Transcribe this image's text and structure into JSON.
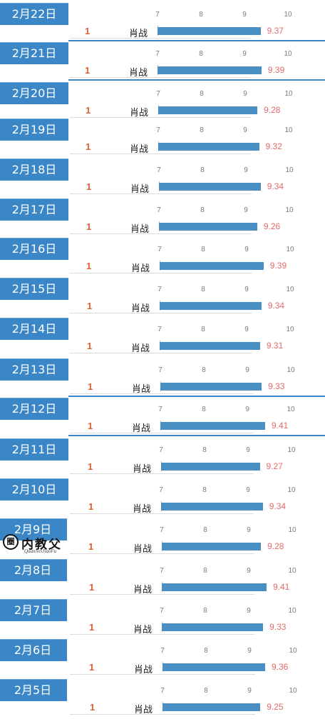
{
  "chart_data": {
    "type": "bar",
    "orientation": "horizontal",
    "tick_labels": [
      "7",
      "8",
      "9",
      "10"
    ],
    "xlim": [
      7,
      10
    ],
    "rows": [
      {
        "date": "2月22日",
        "rank": "1",
        "name": "肖战",
        "value": 9.37,
        "value_label": "9.37"
      },
      {
        "date": "2月21日",
        "rank": "1",
        "name": "肖战",
        "value": 9.39,
        "value_label": "9.39"
      },
      {
        "date": "2月20日",
        "rank": "1",
        "name": "肖战",
        "value": 9.28,
        "value_label": "9.28"
      },
      {
        "date": "2月19日",
        "rank": "1",
        "name": "肖战",
        "value": 9.32,
        "value_label": "9.32"
      },
      {
        "date": "2月18日",
        "rank": "1",
        "name": "肖战",
        "value": 9.34,
        "value_label": "9.34"
      },
      {
        "date": "2月17日",
        "rank": "1",
        "name": "肖战",
        "value": 9.26,
        "value_label": "9.26"
      },
      {
        "date": "2月16日",
        "rank": "1",
        "name": "肖战",
        "value": 9.39,
        "value_label": "9.39"
      },
      {
        "date": "2月15日",
        "rank": "1",
        "name": "肖战",
        "value": 9.34,
        "value_label": "9.34"
      },
      {
        "date": "2月14日",
        "rank": "1",
        "name": "肖战",
        "value": 9.31,
        "value_label": "9.31"
      },
      {
        "date": "2月13日",
        "rank": "1",
        "name": "肖战",
        "value": 9.33,
        "value_label": "9.33"
      },
      {
        "date": "2月12日",
        "rank": "1",
        "name": "肖战",
        "value": 9.41,
        "value_label": "9.41"
      },
      {
        "date": "2月11日",
        "rank": "1",
        "name": "肖战",
        "value": 9.27,
        "value_label": "9.27"
      },
      {
        "date": "2月10日",
        "rank": "1",
        "name": "肖战",
        "value": 9.34,
        "value_label": "9.34"
      },
      {
        "date": "2月9日",
        "rank": "1",
        "name": "肖战",
        "value": 9.28,
        "value_label": "9.28"
      },
      {
        "date": "2月8日",
        "rank": "1",
        "name": "肖战",
        "value": 9.41,
        "value_label": "9.41"
      },
      {
        "date": "2月7日",
        "rank": "1",
        "name": "肖战",
        "value": 9.33,
        "value_label": "9.33"
      },
      {
        "date": "2月6日",
        "rank": "1",
        "name": "肖战",
        "value": 9.36,
        "value_label": "9.36"
      },
      {
        "date": "2月5日",
        "rank": "1",
        "name": "肖战",
        "value": 9.25,
        "value_label": "9.25"
      }
    ]
  },
  "colors": {
    "date_tab": "#3b86c6",
    "bar": "#4a8fc4",
    "value_text": "#e46a6a",
    "rank_text": "#e06030"
  },
  "watermark": {
    "seal": "圈",
    "text": "内教父",
    "sub": "QuanNeiJiaoFu"
  }
}
